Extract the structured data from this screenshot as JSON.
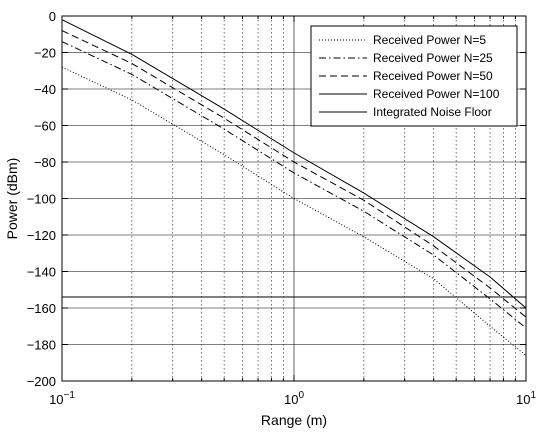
{
  "chart_data": {
    "type": "line",
    "xscale": "log",
    "xlabel": "Range (m)",
    "ylabel": "Power (dBm)",
    "xlim": [
      0.1,
      10
    ],
    "ylim": [
      -200,
      0
    ],
    "grid": true,
    "legend_position": "top-right",
    "xticks": [
      {
        "value": 0.1,
        "base": "10",
        "exp": "-1"
      },
      {
        "value": 1,
        "base": "10",
        "exp": "0"
      },
      {
        "value": 10,
        "base": "10",
        "exp": "1"
      }
    ],
    "yticks": [
      0,
      -20,
      -40,
      -60,
      -80,
      -100,
      -120,
      -140,
      -160,
      -180,
      -200
    ],
    "series": [
      {
        "name": "Received Power N=5",
        "style": "dotted",
        "x": [
          0.1,
          0.2,
          0.5,
          1,
          2,
          4,
          7,
          10
        ],
        "y": [
          -28,
          -46,
          -76,
          -100,
          -121,
          -144,
          -170,
          -186
        ]
      },
      {
        "name": "Received Power N=25",
        "style": "dashdot",
        "x": [
          0.1,
          0.2,
          0.5,
          1,
          2,
          4,
          7,
          10
        ],
        "y": [
          -14,
          -32,
          -62,
          -86,
          -107,
          -131,
          -155,
          -171
        ]
      },
      {
        "name": "Received Power N=50",
        "style": "dashed",
        "x": [
          0.1,
          0.2,
          0.5,
          1,
          2,
          4,
          7,
          10
        ],
        "y": [
          -8,
          -26,
          -56,
          -80,
          -101,
          -126,
          -149,
          -165
        ]
      },
      {
        "name": "Received Power N=100",
        "style": "solid",
        "x": [
          0.1,
          0.2,
          0.5,
          1,
          2,
          4,
          7,
          10
        ],
        "y": [
          -2,
          -21,
          -51,
          -75,
          -97,
          -121,
          -143,
          -160
        ]
      },
      {
        "name": "Integrated Noise Floor",
        "style": "solid",
        "x": [
          0.1,
          10
        ],
        "y": [
          -154,
          -154
        ]
      }
    ]
  }
}
